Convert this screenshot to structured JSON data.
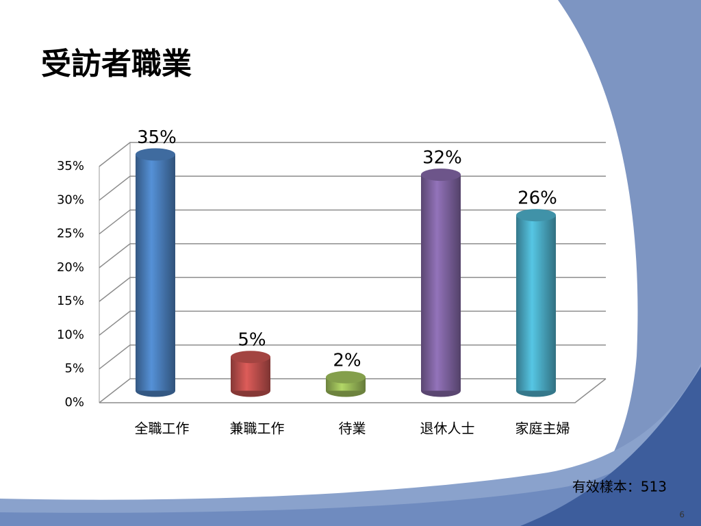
{
  "title": "受訪者職業",
  "chart_data": {
    "type": "bar",
    "categories": [
      "全職工作",
      "兼職工作",
      "待業",
      "退休人士",
      "家庭主婦"
    ],
    "values": [
      35,
      5,
      2,
      32,
      26
    ],
    "value_labels": [
      "35%",
      "5%",
      "2%",
      "32%",
      "26%"
    ],
    "colors": [
      "#4a7ebb",
      "#c0504d",
      "#9bbb59",
      "#8064a2",
      "#4bacc6"
    ],
    "ylim": [
      0,
      35
    ],
    "yticks": [
      {
        "value": 0,
        "label": "0%"
      },
      {
        "value": 5,
        "label": "5%"
      },
      {
        "value": 10,
        "label": "10%"
      },
      {
        "value": 15,
        "label": "15%"
      },
      {
        "value": 20,
        "label": "20%"
      },
      {
        "value": 25,
        "label": "25%"
      },
      {
        "value": 30,
        "label": "30%"
      },
      {
        "value": 35,
        "label": "35%"
      }
    ],
    "grid": true
  },
  "note": "有效樣本：513",
  "page_number": "6"
}
